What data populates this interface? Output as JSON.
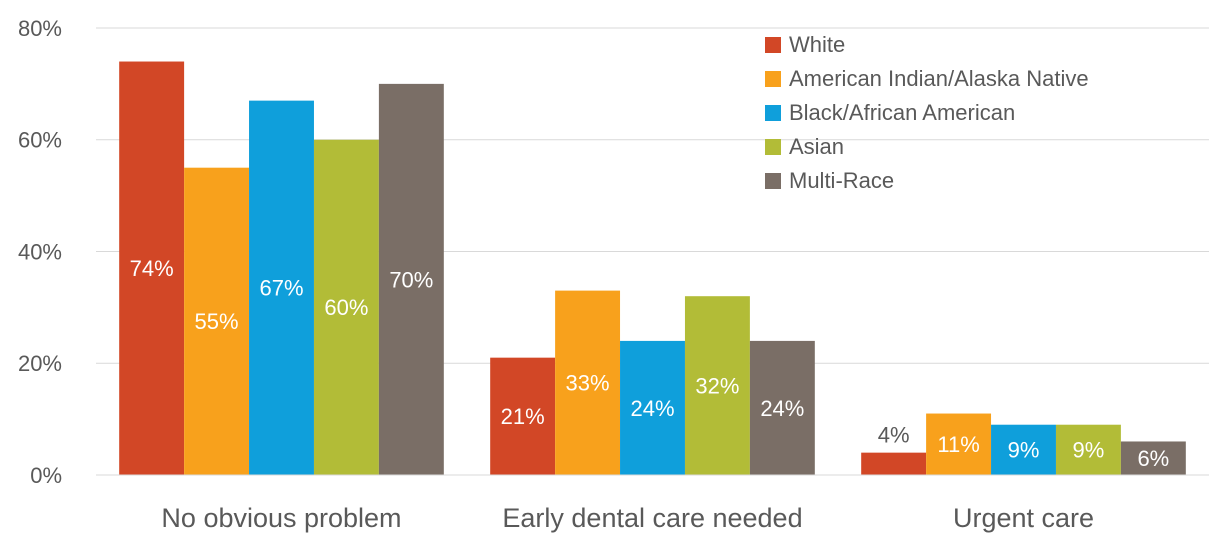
{
  "chart_data": {
    "type": "bar",
    "categories": [
      "No obvious problem",
      "Early dental care needed",
      "Urgent care"
    ],
    "series": [
      {
        "name": "White",
        "color": "#d24726",
        "values": [
          74,
          21,
          4
        ],
        "value_labels": [
          "74%",
          "21%",
          "4%"
        ]
      },
      {
        "name": "American Indian/Alaska Native",
        "color": "#f8a11c",
        "values": [
          55,
          33,
          11
        ],
        "value_labels": [
          "55%",
          "33%",
          "11%"
        ]
      },
      {
        "name": "Black/African American",
        "color": "#0f9fdb",
        "values": [
          67,
          24,
          9
        ],
        "value_labels": [
          "67%",
          "24%",
          "9%"
        ]
      },
      {
        "name": "Asian",
        "color": "#b2bc37",
        "values": [
          60,
          32,
          9
        ],
        "value_labels": [
          "60%",
          "32%",
          "9%"
        ]
      },
      {
        "name": "Multi-Race",
        "color": "#7a6e66",
        "values": [
          70,
          24,
          6
        ],
        "value_labels": [
          "70%",
          "24%",
          "6%"
        ]
      }
    ],
    "ylim": [
      0,
      80
    ],
    "yticks": [
      {
        "value": 0,
        "label": "0%"
      },
      {
        "value": 20,
        "label": "20%"
      },
      {
        "value": 40,
        "label": "40%"
      },
      {
        "value": 60,
        "label": "60%"
      },
      {
        "value": 80,
        "label": "80%"
      }
    ],
    "grid": true,
    "legend": "upper right"
  }
}
